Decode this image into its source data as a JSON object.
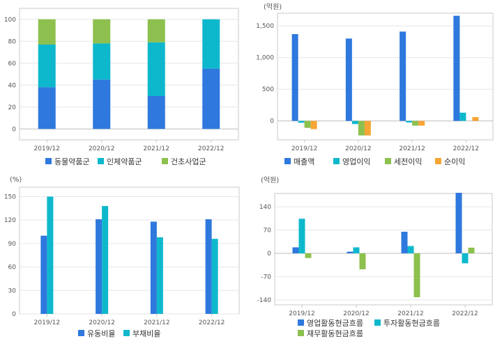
{
  "chart_data": [
    {
      "id": "business-mix",
      "type": "bar",
      "stacked": true,
      "unit": "",
      "categories": [
        "2019/12",
        "2020/12",
        "2021/12",
        "2022/12"
      ],
      "ylim": [
        -10,
        110
      ],
      "yticks": [
        0,
        20,
        40,
        60,
        80,
        100
      ],
      "series": [
        {
          "name": "동물약품군",
          "color": "#2e78de",
          "values": [
            38,
            45,
            30,
            55
          ]
        },
        {
          "name": "인체약품군",
          "color": "#0eb8cc",
          "values": [
            39,
            33,
            49,
            45
          ]
        },
        {
          "name": "건초사업군",
          "color": "#8dc04e",
          "values": [
            23,
            22,
            21,
            0
          ]
        }
      ],
      "legend": {
        "position": "bottom"
      }
    },
    {
      "id": "income",
      "type": "bar",
      "stacked": false,
      "unit": "(억원)",
      "categories": [
        "2019/12",
        "2020/12",
        "2021/12",
        "2022/12"
      ],
      "ylim": [
        -300,
        1700
      ],
      "yticks": [
        0,
        500,
        1000,
        1500
      ],
      "ytick_labels": [
        "0",
        "500",
        "1,000",
        "1,500"
      ],
      "series": [
        {
          "name": "매출액",
          "color": "#2e78de",
          "values": [
            1370,
            1300,
            1410,
            1660
          ]
        },
        {
          "name": "영업이익",
          "color": "#0eb8cc",
          "values": [
            -30,
            -50,
            -25,
            130
          ]
        },
        {
          "name": "세전이익",
          "color": "#8dc04e",
          "values": [
            -110,
            -230,
            -75,
            0
          ]
        },
        {
          "name": "순이익",
          "color": "#f7a535",
          "values": [
            -130,
            -230,
            -75,
            60
          ]
        }
      ],
      "legend": {
        "position": "bottom"
      }
    },
    {
      "id": "ratios",
      "type": "bar",
      "stacked": false,
      "unit": "(%)",
      "categories": [
        "2019/12",
        "2020/12",
        "2021/12",
        "2022/12"
      ],
      "ylim": [
        0,
        162
      ],
      "yticks": [
        0,
        30,
        60,
        90,
        120,
        150
      ],
      "series": [
        {
          "name": "유동비율",
          "color": "#2e78de",
          "values": [
            100,
            121,
            118,
            121
          ]
        },
        {
          "name": "부채비율",
          "color": "#0eb8cc",
          "values": [
            150,
            138,
            98,
            96
          ]
        }
      ],
      "legend": {
        "position": "bottom"
      }
    },
    {
      "id": "cashflow",
      "type": "bar",
      "stacked": false,
      "unit": "(억원)",
      "categories": [
        "2019/12",
        "2020/12",
        "2021/12",
        "2022/12"
      ],
      "ylim": [
        -155,
        180
      ],
      "yticks": [
        -140,
        -70,
        0,
        70,
        140
      ],
      "series": [
        {
          "name": "영업활동현금흐름",
          "color": "#2e78de",
          "values": [
            18,
            5,
            65,
            182
          ]
        },
        {
          "name": "투자활동현금흐름",
          "color": "#0eb8cc",
          "values": [
            104,
            18,
            22,
            -30
          ]
        },
        {
          "name": "재무활동현금흐름",
          "color": "#8dc04e",
          "values": [
            -14,
            -48,
            -132,
            17
          ]
        }
      ],
      "legend": {
        "position": "bottom"
      }
    }
  ]
}
